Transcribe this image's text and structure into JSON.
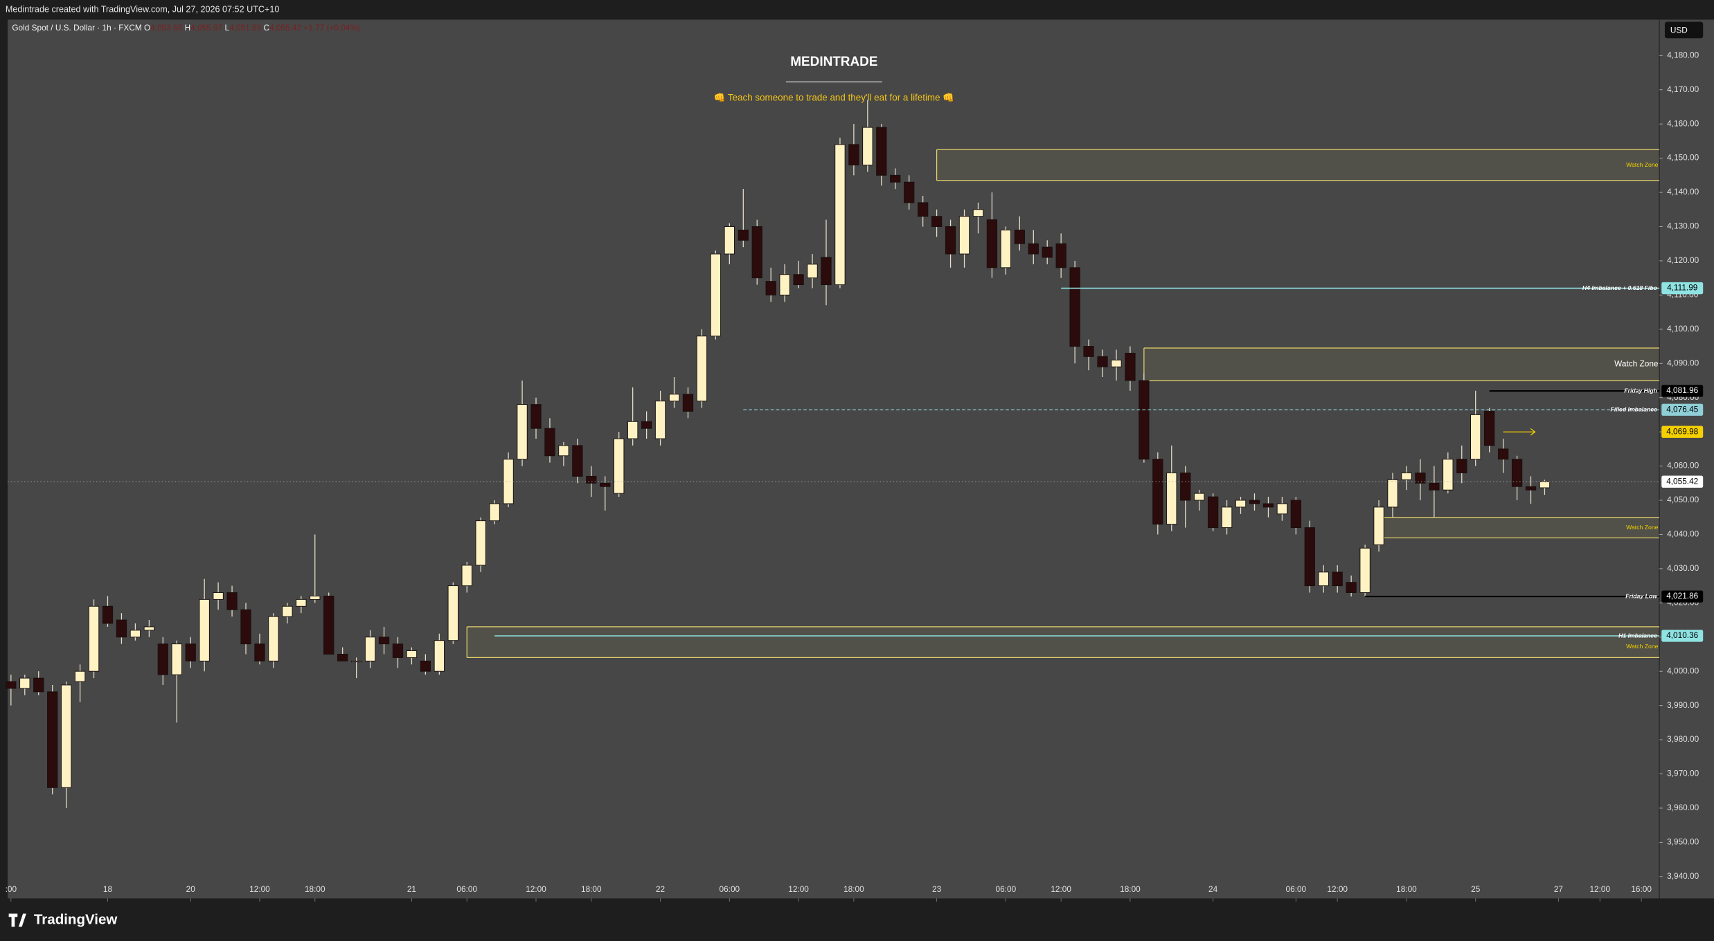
{
  "header": {
    "credit": "Medintrade created with TradingView.com, Jul 27, 2026 07:52 UTC+10",
    "symbol": "Gold Spot / U.S. Dollar · 1h · FXCM",
    "ohlc": [
      {
        "key": "O",
        "value": "4,053.65"
      },
      {
        "key": "H",
        "value": "4,055.97"
      },
      {
        "key": "L",
        "value": "4,051.59"
      },
      {
        "key": "C",
        "value": "4,055.42"
      }
    ],
    "change": "+1.77 (+0.04%)",
    "currency": "USD",
    "brand": "TradingView"
  },
  "chart_data": {
    "type": "candlestick",
    "title": "MEDINTRADE",
    "subtitle": "👊 Teach someone to trade and they'll eat for a lifetime 👊",
    "bull_color": "#fff3c4",
    "bear_color": "#2b0b0b",
    "candles": [
      [
        3997,
        3999,
        3990,
        3995
      ],
      [
        3995,
        3999,
        3993,
        3998
      ],
      [
        3998,
        4000,
        3993,
        3994
      ],
      [
        3994,
        3996,
        3964,
        3966
      ],
      [
        3966,
        3997,
        3960,
        3996
      ],
      [
        3997,
        4002,
        3991,
        4000
      ],
      [
        4000,
        4021,
        3998,
        4019
      ],
      [
        4019,
        4022,
        4013,
        4014
      ],
      [
        4015,
        4017,
        4008,
        4010
      ],
      [
        4010,
        4014,
        4009,
        4012
      ],
      [
        4012,
        4015,
        4010,
        4013
      ],
      [
        4008,
        4010,
        3996,
        3999
      ],
      [
        3999,
        4009,
        3985,
        4008
      ],
      [
        4008,
        4010,
        4001,
        4003
      ],
      [
        4003,
        4027,
        4000,
        4021
      ],
      [
        4021,
        4026,
        4018,
        4023
      ],
      [
        4023,
        4025,
        4016,
        4018
      ],
      [
        4018,
        4020,
        4005,
        4008
      ],
      [
        4008,
        4011,
        4002,
        4003
      ],
      [
        4003,
        4017,
        4001,
        4016
      ],
      [
        4016,
        4020,
        4014,
        4019
      ],
      [
        4019,
        4022,
        4017,
        4021
      ],
      [
        4021,
        4040,
        4020,
        4022
      ],
      [
        4022,
        4023,
        4005,
        4005
      ],
      [
        4005,
        4007,
        4003,
        4003
      ],
      [
        4003,
        4004,
        3998,
        4003
      ],
      [
        4003,
        4012,
        4001,
        4010
      ],
      [
        4010,
        4013,
        4005,
        4008
      ],
      [
        4008,
        4010,
        4001,
        4004
      ],
      [
        4004,
        4007,
        4002,
        4006
      ],
      [
        4003,
        4005,
        3999,
        4000
      ],
      [
        4000,
        4011,
        3999,
        4009
      ],
      [
        4009,
        4026,
        4008,
        4025
      ],
      [
        4025,
        4032,
        4023,
        4031
      ],
      [
        4031,
        4045,
        4029,
        4044
      ],
      [
        4044,
        4050,
        4043,
        4049
      ],
      [
        4049,
        4064,
        4048,
        4062
      ],
      [
        4062,
        4085,
        4060,
        4078
      ],
      [
        4078,
        4080,
        4068,
        4071
      ],
      [
        4071,
        4074,
        4061,
        4063
      ],
      [
        4063,
        4067,
        4060,
        4066
      ],
      [
        4066,
        4068,
        4055,
        4057
      ],
      [
        4057,
        4060,
        4051,
        4055
      ],
      [
        4055,
        4057,
        4047,
        4054
      ],
      [
        4052,
        4070,
        4051,
        4068
      ],
      [
        4068,
        4083,
        4066,
        4073
      ],
      [
        4073,
        4076,
        4068,
        4071
      ],
      [
        4068,
        4082,
        4066,
        4079
      ],
      [
        4079,
        4086,
        4077,
        4081
      ],
      [
        4081,
        4083,
        4074,
        4076
      ],
      [
        4079,
        4100,
        4077,
        4098
      ],
      [
        4098,
        4123,
        4097,
        4122
      ],
      [
        4122,
        4131,
        4119,
        4130
      ],
      [
        4129,
        4141,
        4124,
        4126
      ],
      [
        4130,
        4132,
        4113,
        4115
      ],
      [
        4114,
        4118,
        4108,
        4110
      ],
      [
        4110,
        4119,
        4108,
        4116
      ],
      [
        4116,
        4120,
        4112,
        4113
      ],
      [
        4115,
        4122,
        4112,
        4119
      ],
      [
        4121,
        4132,
        4107,
        4113
      ],
      [
        4113,
        4156,
        4112,
        4154
      ],
      [
        4154,
        4160,
        4145,
        4148
      ],
      [
        4148,
        4167,
        4146,
        4159
      ],
      [
        4159,
        4160,
        4142,
        4145
      ],
      [
        4145,
        4147,
        4141,
        4143
      ],
      [
        4143,
        4145,
        4135,
        4137
      ],
      [
        4137,
        4139,
        4130,
        4133
      ],
      [
        4133,
        4135,
        4127,
        4130
      ],
      [
        4130,
        4132,
        4118,
        4122
      ],
      [
        4122,
        4135,
        4118,
        4133
      ],
      [
        4133,
        4137,
        4128,
        4135
      ],
      [
        4132,
        4140,
        4115,
        4118
      ],
      [
        4118,
        4130,
        4116,
        4129
      ],
      [
        4129,
        4133,
        4123,
        4125
      ],
      [
        4125,
        4129,
        4119,
        4122
      ],
      [
        4124,
        4126,
        4119,
        4121
      ],
      [
        4125,
        4128,
        4115,
        4118
      ],
      [
        4118,
        4120,
        4090,
        4095
      ],
      [
        4095,
        4097,
        4088,
        4092
      ],
      [
        4092,
        4094,
        4086,
        4089
      ],
      [
        4089,
        4094,
        4085,
        4091
      ],
      [
        4093,
        4095,
        4082,
        4085
      ],
      [
        4085,
        4087,
        4061,
        4062
      ],
      [
        4062,
        4064,
        4040,
        4043
      ],
      [
        4043,
        4066,
        4041,
        4058
      ],
      [
        4058,
        4060,
        4042,
        4050
      ],
      [
        4050,
        4053,
        4047,
        4052
      ],
      [
        4051,
        4052,
        4041,
        4042
      ],
      [
        4042,
        4050,
        4040,
        4048
      ],
      [
        4048,
        4051,
        4046,
        4050
      ],
      [
        4050,
        4052,
        4047,
        4049
      ],
      [
        4049,
        4051,
        4045,
        4048
      ],
      [
        4046,
        4051,
        4044,
        4049
      ],
      [
        4050,
        4051,
        4040,
        4042
      ],
      [
        4042,
        4044,
        4023,
        4025
      ],
      [
        4025,
        4031,
        4023,
        4029
      ],
      [
        4029,
        4031,
        4023,
        4025
      ],
      [
        4026,
        4028,
        4021.86,
        4023
      ],
      [
        4023,
        4037,
        4022,
        4036
      ],
      [
        4037,
        4050,
        4035,
        4048
      ],
      [
        4048,
        4058,
        4045,
        4056
      ],
      [
        4056,
        4060,
        4053,
        4058
      ],
      [
        4058,
        4062,
        4050,
        4055
      ],
      [
        4055,
        4060,
        4045,
        4053
      ],
      [
        4053,
        4064,
        4052,
        4062
      ],
      [
        4062,
        4066,
        4055,
        4058
      ],
      [
        4062,
        4082,
        4060,
        4075
      ],
      [
        4076,
        4077,
        4064,
        4066
      ],
      [
        4065,
        4068,
        4058,
        4062
      ],
      [
        4062,
        4063,
        4050,
        4054
      ],
      [
        4054,
        4057,
        4049,
        4053
      ],
      [
        4053.65,
        4055.97,
        4051.59,
        4055.42
      ]
    ],
    "xlim": [
      -0.24,
      119.3
    ],
    "xticks": [
      {
        "value": 0,
        "label": ":00"
      },
      {
        "value": 7,
        "label": "18"
      },
      {
        "value": 13,
        "label": "20"
      },
      {
        "value": 18,
        "label": "12:00"
      },
      {
        "value": 22,
        "label": "18:00"
      },
      {
        "value": 29,
        "label": "21"
      },
      {
        "value": 33,
        "label": "06:00"
      },
      {
        "value": 38,
        "label": "12:00"
      },
      {
        "value": 42,
        "label": "18:00"
      },
      {
        "value": 47,
        "label": "22"
      },
      {
        "value": 52,
        "label": "06:00"
      },
      {
        "value": 57,
        "label": "12:00"
      },
      {
        "value": 61,
        "label": "18:00"
      },
      {
        "value": 67,
        "label": "23"
      },
      {
        "value": 72,
        "label": "06:00"
      },
      {
        "value": 76,
        "label": "12:00"
      },
      {
        "value": 81,
        "label": "18:00"
      },
      {
        "value": 87,
        "label": "24"
      },
      {
        "value": 93,
        "label": "06:00"
      },
      {
        "value": 96,
        "label": "12:00"
      },
      {
        "value": 101,
        "label": "18:00"
      },
      {
        "value": 106,
        "label": "25"
      },
      {
        "value": 112,
        "label": "27"
      },
      {
        "value": 115,
        "label": "12:00"
      },
      {
        "value": 118,
        "label": "16:00"
      }
    ],
    "ylim": [
      3933.6,
      4190.5
    ],
    "yticks": [
      {
        "value": 4180,
        "label": "4,180.00"
      },
      {
        "value": 4170,
        "label": "4,170.00"
      },
      {
        "value": 4160,
        "label": "4,160.00"
      },
      {
        "value": 4150,
        "label": "4,150.00"
      },
      {
        "value": 4140,
        "label": "4,140.00"
      },
      {
        "value": 4130,
        "label": "4,130.00"
      },
      {
        "value": 4120,
        "label": "4,120.00"
      },
      {
        "value": 4110,
        "label": "4,110.00"
      },
      {
        "value": 4100,
        "label": "4,100.00"
      },
      {
        "value": 4090,
        "label": "4,090.00"
      },
      {
        "value": 4080,
        "label": "4,080.00"
      },
      {
        "value": 4070,
        "label": "4,070.00"
      },
      {
        "value": 4060,
        "label": "4,060.00"
      },
      {
        "value": 4050,
        "label": "4,050.00"
      },
      {
        "value": 4040,
        "label": "4,040.00"
      },
      {
        "value": 4030,
        "label": "4,030.00"
      },
      {
        "value": 4020,
        "label": "4,020.00"
      },
      {
        "value": 4010,
        "label": "4,010.00"
      },
      {
        "value": 4000,
        "label": "4,000.00"
      },
      {
        "value": 3990,
        "label": "3,990.00"
      },
      {
        "value": 3980,
        "label": "3,980.00"
      },
      {
        "value": 3970,
        "label": "3,970.00"
      },
      {
        "value": 3960,
        "label": "3,960.00"
      },
      {
        "value": 3950,
        "label": "3,950.00"
      },
      {
        "value": 3940,
        "label": "3,940.00"
      }
    ],
    "grid": false,
    "zones": [
      {
        "name": "Watch Zone",
        "top": 4152.5,
        "bottom": 4143.5
      },
      {
        "name": "Watch Zone",
        "top": 4094.5,
        "bottom": 4085
      },
      {
        "name": "Watch Zone",
        "top": 4045,
        "bottom": 4039
      },
      {
        "name": "Watch Zone",
        "top": 4013,
        "bottom": 4004
      }
    ],
    "zone_color": "#e6d36a",
    "levels": [
      {
        "name": "H4 Imbalance + 0.618 Fibo",
        "value": 4111.99,
        "label": "4,111.99",
        "color": "#8fe3e3"
      },
      {
        "name": "Friday High",
        "value": 4081.96,
        "label": "4,081.96",
        "color": "#000000"
      },
      {
        "name": "Filled Imbalance",
        "value": 4076.45,
        "label": "4,076.45",
        "color": "#8fd0d8"
      },
      {
        "value": 4069.98,
        "label": "4,069.98",
        "color": "#f5d000"
      },
      {
        "value": 4055.42,
        "label": "4,055.42",
        "color": "#ffffff"
      },
      {
        "name": "Friday Low",
        "value": 4021.86,
        "label": "4,021.86",
        "color": "#000000"
      },
      {
        "name": "H1 Imbalance",
        "value": 4010.36,
        "label": "4,010.36",
        "color": "#8fe3e3"
      }
    ]
  }
}
